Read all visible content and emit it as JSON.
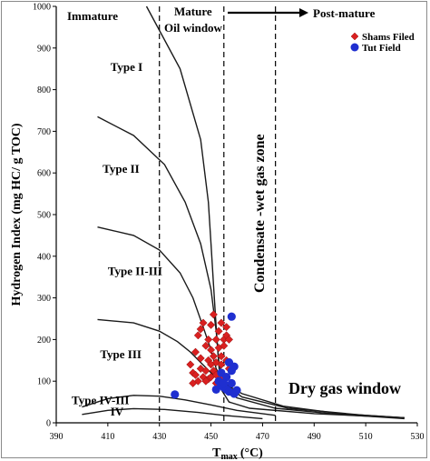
{
  "chart_data": {
    "type": "scatter",
    "xlabel_main": "T",
    "xlabel_sub": "max",
    "xlabel_tail": "(°C)",
    "ylabel": "Hydrogen Index (mg HC/ g TOC)",
    "xlim": [
      390,
      530
    ],
    "ylim": [
      0,
      1000
    ],
    "x_ticks": [
      390,
      410,
      430,
      450,
      470,
      490,
      510,
      530
    ],
    "y_ticks": [
      0,
      100,
      200,
      300,
      400,
      500,
      600,
      700,
      800,
      900,
      1000
    ],
    "maturity_boundaries_x": [
      430,
      455,
      475
    ],
    "zone_labels": {
      "immature": "Immature",
      "mature": "Mature",
      "oil_window": "Oil window",
      "post_mature": "Post-mature",
      "condensate": "Condensate -wet gas zone",
      "dry_gas": "Dry gas window"
    },
    "kerogen_curves": [
      {
        "name": "Type I",
        "points": [
          [
            425,
            1000
          ],
          [
            438,
            850
          ],
          [
            446,
            680
          ],
          [
            449,
            530
          ],
          [
            450,
            430
          ],
          [
            451,
            330
          ],
          [
            452,
            230
          ],
          [
            453,
            140
          ],
          [
            454,
            80
          ],
          [
            457,
            50
          ],
          [
            465,
            35
          ],
          [
            490,
            22
          ],
          [
            525,
            12
          ]
        ]
      },
      {
        "name": "Type II",
        "points": [
          [
            406,
            735
          ],
          [
            420,
            690
          ],
          [
            432,
            620
          ],
          [
            440,
            530
          ],
          [
            446,
            430
          ],
          [
            450,
            320
          ],
          [
            452,
            220
          ],
          [
            453,
            150
          ],
          [
            455,
            95
          ],
          [
            460,
            60
          ],
          [
            475,
            35
          ],
          [
            500,
            20
          ],
          [
            525,
            10
          ]
        ]
      },
      {
        "name": "Type II-III",
        "points": [
          [
            406,
            470
          ],
          [
            420,
            450
          ],
          [
            430,
            415
          ],
          [
            438,
            360
          ],
          [
            443,
            300
          ],
          [
            447,
            230
          ],
          [
            450,
            175
          ],
          [
            452,
            130
          ],
          [
            455,
            95
          ],
          [
            462,
            62
          ],
          [
            480,
            35
          ],
          [
            510,
            18
          ],
          [
            525,
            12
          ]
        ]
      },
      {
        "name": "Type III",
        "points": [
          [
            406,
            248
          ],
          [
            420,
            240
          ],
          [
            430,
            220
          ],
          [
            437,
            195
          ],
          [
            442,
            170
          ],
          [
            446,
            145
          ],
          [
            450,
            120
          ],
          [
            455,
            95
          ],
          [
            462,
            70
          ],
          [
            478,
            40
          ],
          [
            500,
            22
          ],
          [
            525,
            12
          ]
        ]
      },
      {
        "name": "Type IV-III",
        "points": [
          [
            400,
            38
          ],
          [
            410,
            58
          ],
          [
            420,
            66
          ],
          [
            430,
            64
          ],
          [
            440,
            55
          ],
          [
            450,
            43
          ],
          [
            460,
            30
          ],
          [
            475,
            18
          ]
        ]
      },
      {
        "name": "IV",
        "points": [
          [
            400,
            20
          ],
          [
            410,
            30
          ],
          [
            420,
            34
          ],
          [
            432,
            32
          ],
          [
            445,
            25
          ],
          [
            455,
            18
          ],
          [
            470,
            10
          ]
        ]
      }
    ],
    "curve_label_positions": [
      {
        "text": "Type I",
        "x": 411,
        "y": 845
      },
      {
        "text": "Type II",
        "x": 408,
        "y": 600
      },
      {
        "text": "Type II-III",
        "x": 410,
        "y": 355
      },
      {
        "text": "Type III",
        "x": 407,
        "y": 155
      },
      {
        "text": "Type IV-III",
        "x": 396,
        "y": 45
      },
      {
        "text": "IV",
        "x": 411,
        "y": 18
      }
    ],
    "series": [
      {
        "name": "Shams Filed",
        "marker": "diamond",
        "color": "#d92020",
        "points": [
          [
            442,
            140
          ],
          [
            443,
            120
          ],
          [
            444,
            115
          ],
          [
            444,
            170
          ],
          [
            445,
            100
          ],
          [
            445,
            210
          ],
          [
            446,
            155
          ],
          [
            446,
            130
          ],
          [
            447,
            240
          ],
          [
            447,
            110
          ],
          [
            448,
            185
          ],
          [
            448,
            125
          ],
          [
            449,
            200
          ],
          [
            449,
            150
          ],
          [
            449,
            105
          ],
          [
            450,
            235
          ],
          [
            450,
            175
          ],
          [
            450,
            110
          ],
          [
            451,
            160
          ],
          [
            451,
            260
          ],
          [
            451,
            125
          ],
          [
            452,
            200
          ],
          [
            452,
            145
          ],
          [
            452,
            95
          ],
          [
            453,
            220
          ],
          [
            453,
            180
          ],
          [
            453,
            115
          ],
          [
            454,
            160
          ],
          [
            454,
            240
          ],
          [
            454,
            120
          ],
          [
            455,
            200
          ],
          [
            455,
            110
          ],
          [
            455,
            185
          ],
          [
            456,
            150
          ],
          [
            456,
            230
          ],
          [
            456,
            210
          ],
          [
            457,
            130
          ],
          [
            446,
            225
          ],
          [
            443,
            95
          ],
          [
            450,
            140
          ],
          [
            448,
            100
          ],
          [
            452,
            115
          ],
          [
            457,
            200
          ],
          [
            454,
            140
          ]
        ]
      },
      {
        "name": "Tut Field",
        "marker": "circle",
        "color": "#1f2fd0",
        "points": [
          [
            436,
            68
          ],
          [
            452,
            80
          ],
          [
            453,
            100
          ],
          [
            454,
            120
          ],
          [
            454,
            90
          ],
          [
            455,
            85
          ],
          [
            456,
            80
          ],
          [
            456,
            110
          ],
          [
            457,
            145
          ],
          [
            457,
            75
          ],
          [
            458,
            125
          ],
          [
            458,
            255
          ],
          [
            458,
            95
          ],
          [
            459,
            135
          ],
          [
            459,
            70
          ],
          [
            460,
            78
          ],
          [
            455,
            95
          ]
        ]
      }
    ],
    "legend_position": "top-right"
  }
}
